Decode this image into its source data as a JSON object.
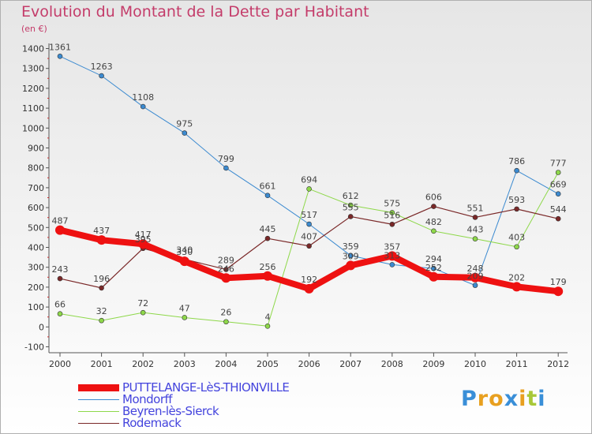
{
  "title": "Evolution du Montant de la Dette par Habitant",
  "subtitle": "(en €)",
  "logo": {
    "text": "Proxiti",
    "letter_colors": [
      "#3a8fd8",
      "#e8a020",
      "#e8a020",
      "#3a8fd8",
      "#e8a020",
      "#a8c838",
      "#3a8fd8"
    ]
  },
  "chart_data": {
    "type": "line",
    "x": [
      "2000",
      "2001",
      "2002",
      "2003",
      "2004",
      "2005",
      "2006",
      "2007",
      "2008",
      "2009",
      "2010",
      "2011",
      "2012"
    ],
    "ylim": [
      -100,
      1400
    ],
    "yticks": [
      -100,
      0,
      100,
      200,
      300,
      400,
      500,
      600,
      700,
      800,
      900,
      1000,
      1100,
      1200,
      1300,
      1400
    ],
    "grid": false,
    "legend_position": "bottom-left",
    "series": [
      {
        "name": "Mondorff",
        "color": "#3b8ad0",
        "values": [
          1361,
          1263,
          1108,
          975,
          799,
          661,
          517,
          359,
          313,
          294,
          209,
          786,
          669
        ],
        "labels": [
          "1361",
          "1263",
          "1108",
          "975",
          "799",
          "661",
          "517",
          "359",
          "313",
          "294",
          "209",
          "786",
          "669"
        ]
      },
      {
        "name": "Beyren-lès-Sierck",
        "color": "#8ed84a",
        "values": [
          66,
          32,
          72,
          47,
          26,
          4,
          694,
          612,
          575,
          482,
          443,
          403,
          777
        ],
        "labels": [
          "66",
          "32",
          "72",
          "47",
          "26",
          "4",
          "694",
          "612",
          "575",
          "482",
          "443",
          "403",
          "777"
        ]
      },
      {
        "name": "Rodemack",
        "color": "#7a2828",
        "values": [
          243,
          196,
          395,
          340,
          289,
          445,
          407,
          555,
          516,
          606,
          551,
          593,
          544
        ],
        "labels": [
          "243",
          "196",
          "395",
          "340",
          "289",
          "445",
          "407",
          "555",
          "516",
          "606",
          "551",
          "593",
          "544"
        ]
      },
      {
        "name": "PUTTELANGE-LèS-THIONVILLE",
        "color": "#ee1111",
        "values": [
          487,
          437,
          417,
          330,
          246,
          256,
          192,
          309,
          357,
          252,
          248,
          202,
          179
        ],
        "labels": [
          "487",
          "437",
          "417",
          "330",
          "246",
          "256",
          "192",
          "309",
          "357",
          "252",
          "248",
          "202",
          "179"
        ]
      }
    ]
  },
  "legend": [
    {
      "label": "PUTTELANGE-LèS-THIONVILLE",
      "color": "#ee1111"
    },
    {
      "label": "Mondorff",
      "color": "#3b8ad0"
    },
    {
      "label": "Beyren-lès-Sierck",
      "color": "#8ed84a"
    },
    {
      "label": "Rodemack",
      "color": "#7a2828"
    }
  ]
}
